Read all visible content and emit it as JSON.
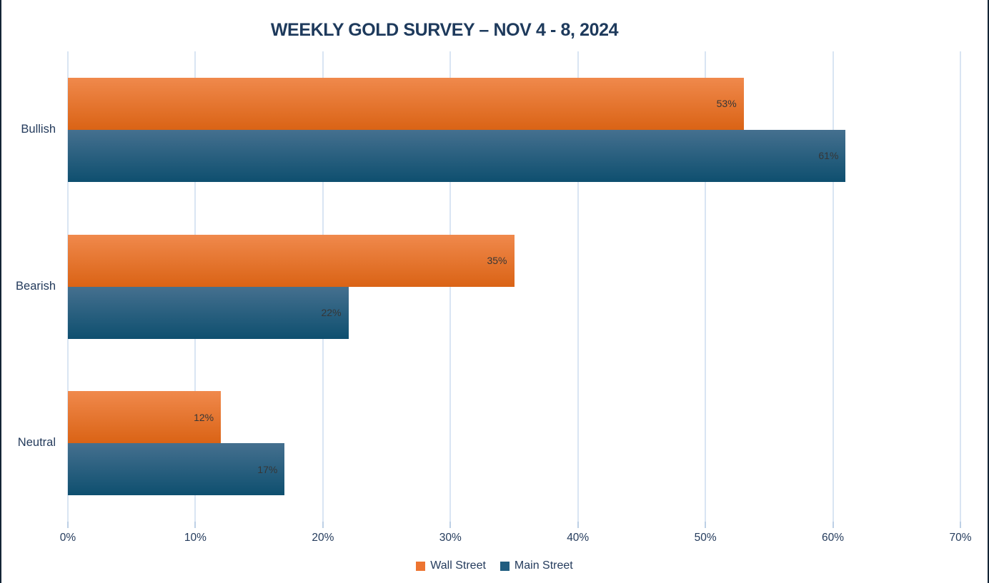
{
  "title": "WEEKLY GOLD SURVEY – NOV 4 - 8, 2024",
  "colors": {
    "title_text": "#1E3A5C",
    "axis_text": "#243B5C",
    "category_text": "#243B5C",
    "value_label_text": "#363636",
    "gridline": "#D9E5F3",
    "tick": "#BDD0E6",
    "edge_line": "#142536",
    "background": "#FFFFFF"
  },
  "chart_data": {
    "type": "bar",
    "orientation": "horizontal",
    "title": "WEEKLY GOLD SURVEY – NOV 4 - 8, 2024",
    "categories": [
      "Bullish",
      "Bearish",
      "Neutral"
    ],
    "series": [
      {
        "name": "Wall Street",
        "values": [
          53,
          35,
          12
        ],
        "value_labels": [
          "53%",
          "35%",
          "12%"
        ],
        "color_top": "#F0894C",
        "color_bottom": "#DA6315",
        "legend_color": "#ED7431"
      },
      {
        "name": "Main Street",
        "values": [
          61,
          22,
          17
        ],
        "value_labels": [
          "61%",
          "22%",
          "17%"
        ],
        "color_top": "#45708F",
        "color_bottom": "#0E4F6F",
        "legend_color": "#205D80"
      }
    ],
    "x_ticks": [
      {
        "value": 0,
        "label": "0%"
      },
      {
        "value": 10,
        "label": "10%"
      },
      {
        "value": 20,
        "label": "20%"
      },
      {
        "value": 30,
        "label": "30%"
      },
      {
        "value": 40,
        "label": "40%"
      },
      {
        "value": 50,
        "label": "50%"
      },
      {
        "value": 60,
        "label": "60%"
      },
      {
        "value": 70,
        "label": "70%"
      }
    ],
    "xlim": [
      0,
      70
    ],
    "grid": true,
    "value_labels_position": "inside-end",
    "legend_position": "bottom"
  }
}
